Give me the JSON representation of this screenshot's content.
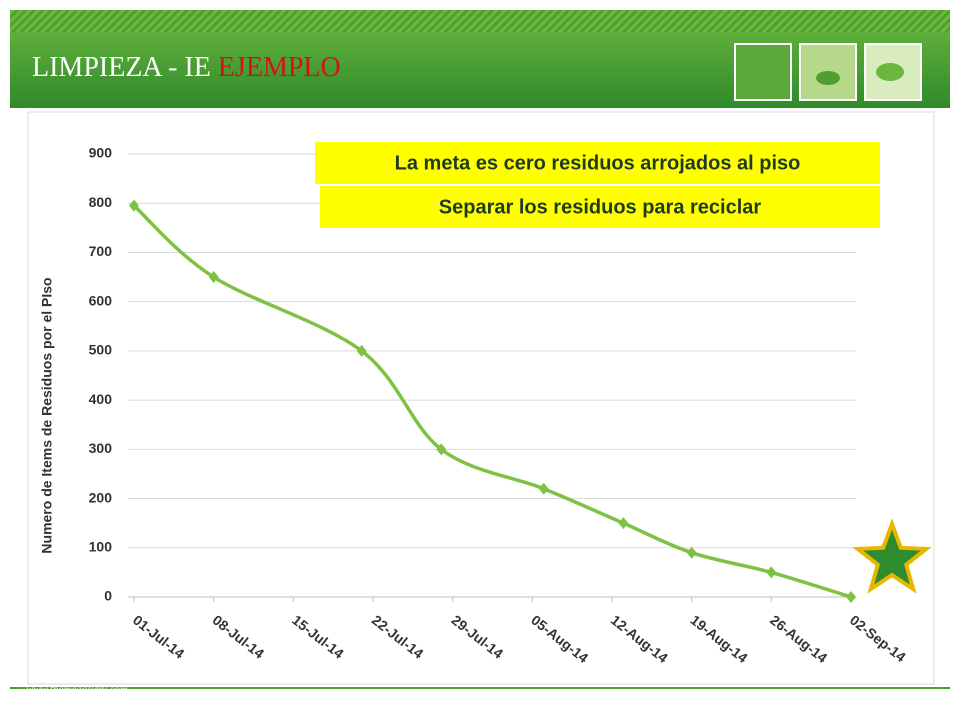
{
  "header": {
    "title": "LIMPIEZA - IE",
    "title_highlight": "EJEMPLO"
  },
  "footer": "www.themegallery.com",
  "chart_data": {
    "type": "line",
    "y_label": "Numero de Items de Residuos por el PIso",
    "x": [
      "2014-07-01",
      "2014-07-08",
      "2014-07-21",
      "2014-07-28",
      "2014-08-06",
      "2014-08-13",
      "2014-08-19",
      "2014-08-26",
      "2014-09-02"
    ],
    "values": [
      795,
      650,
      500,
      300,
      220,
      150,
      90,
      50,
      0
    ],
    "color": "#7dc242",
    "xlim": [
      "2014-07-01",
      "2014-09-02"
    ],
    "xticks": [
      {
        "value": "2014-07-01",
        "label": "01-Jul-14"
      },
      {
        "value": "2014-07-08",
        "label": "08-Jul-14"
      },
      {
        "value": "2014-07-15",
        "label": "15-Jul-14"
      },
      {
        "value": "2014-07-22",
        "label": "22-Jul-14"
      },
      {
        "value": "2014-07-29",
        "label": "29-Jul-14"
      },
      {
        "value": "2014-08-05",
        "label": "05-Aug-14"
      },
      {
        "value": "2014-08-12",
        "label": "12-Aug-14"
      },
      {
        "value": "2014-08-19",
        "label": "19-Aug-14"
      },
      {
        "value": "2014-08-26",
        "label": "26-Aug-14"
      },
      {
        "value": "2014-09-02",
        "label": "02-Sep-14"
      }
    ],
    "ylim": [
      0,
      900
    ],
    "yticks": [
      0,
      100,
      200,
      300,
      400,
      500,
      600,
      700,
      800,
      900
    ],
    "grid": true,
    "annotations": [
      "La meta es cero residuos arrojados al piso",
      "Separar los residuos para reciclar"
    ]
  }
}
